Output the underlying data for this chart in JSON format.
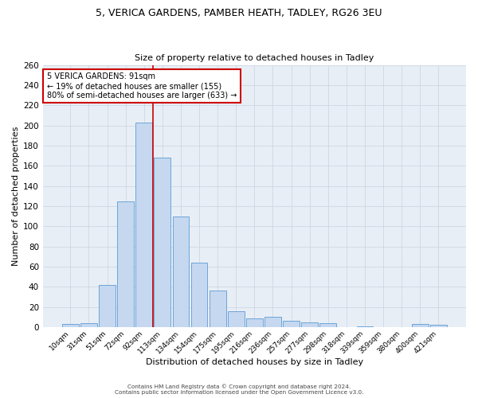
{
  "title1": "5, VERICA GARDENS, PAMBER HEATH, TADLEY, RG26 3EU",
  "title2": "Size of property relative to detached houses in Tadley",
  "xlabel": "Distribution of detached houses by size in Tadley",
  "ylabel": "Number of detached properties",
  "categories": [
    "10sqm",
    "31sqm",
    "51sqm",
    "72sqm",
    "92sqm",
    "113sqm",
    "134sqm",
    "154sqm",
    "175sqm",
    "195sqm",
    "216sqm",
    "236sqm",
    "257sqm",
    "277sqm",
    "298sqm",
    "318sqm",
    "339sqm",
    "359sqm",
    "380sqm",
    "400sqm",
    "421sqm"
  ],
  "values": [
    3,
    4,
    42,
    125,
    203,
    168,
    110,
    64,
    36,
    16,
    9,
    10,
    6,
    5,
    4,
    0,
    1,
    0,
    0,
    3,
    2
  ],
  "bar_color": "#c5d8f0",
  "bar_edge_color": "#5b9bd5",
  "grid_color": "#c8d4e0",
  "bg_color": "#e8eef5",
  "vline_color": "#cc0000",
  "annotation_text": "5 VERICA GARDENS: 91sqm\n← 19% of detached houses are smaller (155)\n80% of semi-detached houses are larger (633) →",
  "annotation_box_edge": "#cc0000",
  "footer1": "Contains HM Land Registry data © Crown copyright and database right 2024.",
  "footer2": "Contains public sector information licensed under the Open Government Licence v3.0.",
  "ylim": [
    0,
    260
  ],
  "yticks": [
    0,
    20,
    40,
    60,
    80,
    100,
    120,
    140,
    160,
    180,
    200,
    220,
    240,
    260
  ]
}
